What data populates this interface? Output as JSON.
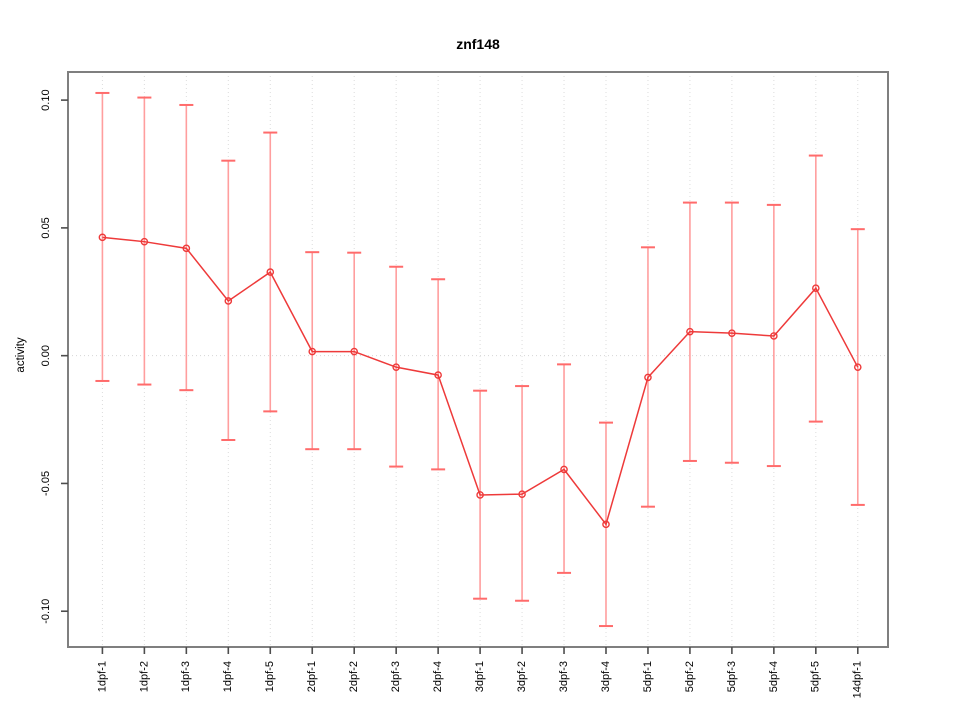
{
  "chart_data": {
    "type": "line",
    "title": "znf148",
    "xlabel": "",
    "ylabel": "activity",
    "categories": [
      "1dpf-1",
      "1dpf-2",
      "1dpf-3",
      "1dpf-4",
      "1dpf-5",
      "2dpf-1",
      "2dpf-2",
      "2dpf-3",
      "2dpf-4",
      "3dpf-1",
      "3dpf-2",
      "3dpf-3",
      "3dpf-4",
      "5dpf-1",
      "5dpf-2",
      "5dpf-3",
      "5dpf-4",
      "5dpf-5",
      "14dpf-1"
    ],
    "series": [
      {
        "name": "activity",
        "values": [
          0.0463,
          0.0446,
          0.042,
          0.0214,
          0.0327,
          0.0016,
          0.0016,
          -0.0045,
          -0.0076,
          -0.0545,
          -0.0542,
          -0.0445,
          -0.066,
          -0.0085,
          0.0094,
          0.0088,
          0.0077,
          0.0264,
          -0.0045
        ],
        "err_hi": [
          0.1028,
          0.101,
          0.0981,
          0.0763,
          0.0873,
          0.0405,
          0.0403,
          0.0348,
          0.0299,
          -0.0137,
          -0.0119,
          -0.0034,
          -0.0262,
          0.0424,
          0.0599,
          0.0599,
          0.059,
          0.0783,
          0.0495
        ],
        "err_lo": [
          -0.0099,
          -0.0113,
          -0.0135,
          -0.033,
          -0.0218,
          -0.0366,
          -0.0366,
          -0.0434,
          -0.0445,
          -0.0951,
          -0.0959,
          -0.085,
          -0.1058,
          -0.0591,
          -0.0412,
          -0.0419,
          -0.0432,
          -0.0258,
          -0.0584
        ]
      }
    ],
    "ylim": [
      -0.114,
      0.111
    ],
    "xlim": [
      0.18,
      19.72
    ],
    "yticks": [
      -0.1,
      -0.05,
      0.0,
      0.05,
      0.1
    ],
    "ytick_labels": [
      "-0.10",
      "-0.05",
      "0.00",
      "0.05",
      "0.10"
    ],
    "grid": {
      "vertical_gridlines": "dotted at each category",
      "horizontal_line_at": 0,
      "style": "dotted"
    },
    "legend": "none",
    "colors": {
      "line": "#ee3a3a",
      "point": "#ee3a3a",
      "error_bar": "#ff9e9e",
      "error_cap": "#ff6b6b",
      "grid": "#dcdcdc",
      "zero_line": "#d6d6d6",
      "axis_box": "#7f7f7f",
      "tick": "#4d4d4d",
      "text": "#000000"
    }
  }
}
